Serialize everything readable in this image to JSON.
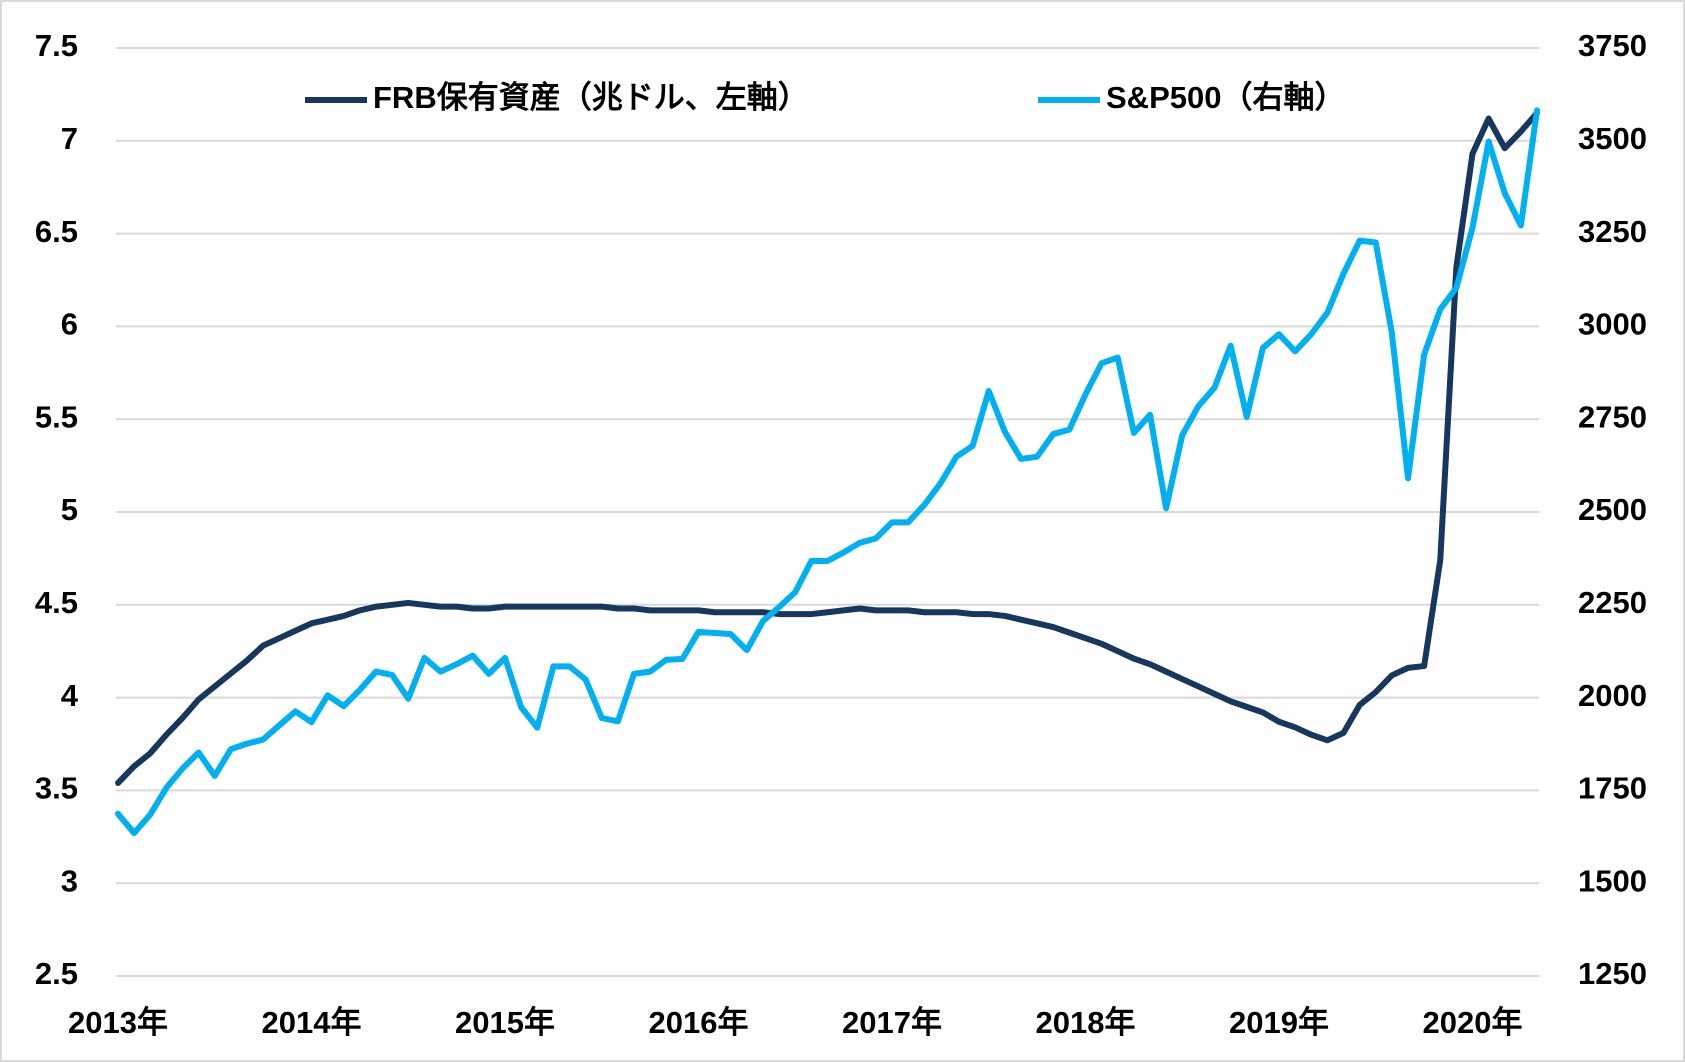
{
  "chart_data": {
    "type": "line",
    "categories": [
      "2013年",
      null,
      null,
      null,
      null,
      null,
      null,
      null,
      null,
      null,
      null,
      null,
      "2014年",
      null,
      null,
      null,
      null,
      null,
      null,
      null,
      null,
      null,
      null,
      null,
      "2015年",
      null,
      null,
      null,
      null,
      null,
      null,
      null,
      null,
      null,
      null,
      null,
      "2016年",
      null,
      null,
      null,
      null,
      null,
      null,
      null,
      null,
      null,
      null,
      null,
      "2017年",
      null,
      null,
      null,
      null,
      null,
      null,
      null,
      null,
      null,
      null,
      null,
      "2018年",
      null,
      null,
      null,
      null,
      null,
      null,
      null,
      null,
      null,
      null,
      null,
      "2019年",
      null,
      null,
      null,
      null,
      null,
      null,
      null,
      null,
      null,
      null,
      null,
      "2020年",
      null,
      null,
      null,
      null
    ],
    "series": [
      {
        "name": "FRB保有資産（兆ドル、左軸）",
        "color": "#17375e",
        "values": [
          3.54,
          3.63,
          3.7,
          3.8,
          3.89,
          3.99,
          4.06,
          4.13,
          4.2,
          4.28,
          4.32,
          4.36,
          4.4,
          4.42,
          4.44,
          4.47,
          4.49,
          4.5,
          4.51,
          4.5,
          4.49,
          4.49,
          4.48,
          4.48,
          4.49,
          4.49,
          4.49,
          4.49,
          4.49,
          4.49,
          4.49,
          4.48,
          4.48,
          4.47,
          4.47,
          4.47,
          4.47,
          4.46,
          4.46,
          4.46,
          4.46,
          4.45,
          4.45,
          4.45,
          4.46,
          4.47,
          4.48,
          4.47,
          4.47,
          4.47,
          4.46,
          4.46,
          4.46,
          4.45,
          4.45,
          4.44,
          4.42,
          4.4,
          4.38,
          4.35,
          4.32,
          4.29,
          4.25,
          4.21,
          4.18,
          4.14,
          4.1,
          4.06,
          4.02,
          3.98,
          3.95,
          3.92,
          3.87,
          3.84,
          3.8,
          3.77,
          3.81,
          3.96,
          4.03,
          4.12,
          4.16,
          4.17,
          4.74,
          6.32,
          6.93,
          7.12,
          6.96,
          7.05,
          7.15
        ]
      },
      {
        "name": "S&P500（右軸）",
        "color": "#00b0f0",
        "axis": "y2",
        "values": [
          1687,
          1635,
          1685,
          1757,
          1809,
          1852,
          1789,
          1861,
          1876,
          1887,
          1925,
          1963,
          1934,
          2006,
          1977,
          2021,
          2070,
          2061,
          1997,
          2107,
          2070,
          2090,
          2113,
          2064,
          2107,
          1974,
          1919,
          2084,
          2084,
          2049,
          1945,
          1936,
          2064,
          2070,
          2102,
          2104,
          2177,
          2174,
          2171,
          2128,
          2206,
          2244,
          2284,
          2368,
          2368,
          2391,
          2417,
          2429,
          2472,
          2472,
          2519,
          2577,
          2649,
          2678,
          2826,
          2716,
          2643,
          2649,
          2710,
          2722,
          2817,
          2901,
          2916,
          2713,
          2762,
          2510,
          2707,
          2785,
          2835,
          2948,
          2756,
          2942,
          2979,
          2933,
          2979,
          3037,
          3142,
          3231,
          3226,
          2982,
          2591,
          2924,
          3046,
          3104,
          3266,
          3498,
          3359,
          3272,
          3582
        ]
      }
    ],
    "ylim": [
      2.5,
      7.5
    ],
    "yticks": [
      2.5,
      3,
      3.5,
      4,
      4.5,
      5,
      5.5,
      6,
      6.5,
      7,
      7.5
    ],
    "y2lim": [
      1250,
      3750
    ],
    "y2ticks": [
      1250,
      1500,
      1750,
      2000,
      2250,
      2500,
      2750,
      3000,
      3250,
      3500,
      3750
    ],
    "grid": true,
    "legend": "top"
  }
}
